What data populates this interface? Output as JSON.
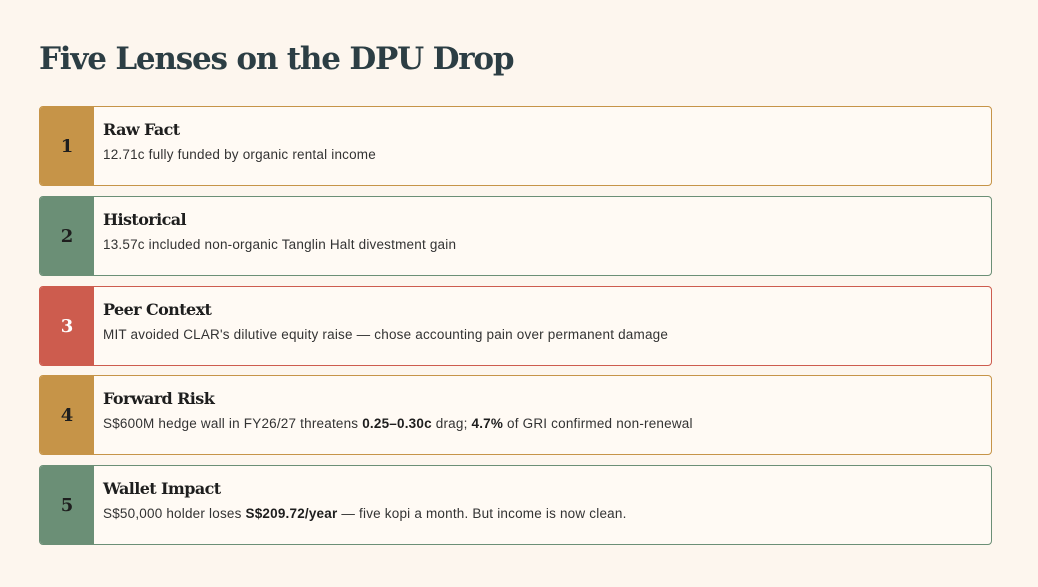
{
  "page": {
    "title": "Five Lenses on the DPU Drop"
  },
  "lenses": [
    {
      "number": "1",
      "heading": "Raw Fact",
      "description": "12.71c fully funded by organic rental income",
      "color": "#c69448"
    },
    {
      "number": "2",
      "heading": "Historical",
      "description": "13.57c included non-organic Tanglin Halt divestment gain",
      "color": "#6b8f76"
    },
    {
      "number": "3",
      "heading": "Peer Context",
      "description": "MIT avoided CLAR's dilutive equity raise — chose accounting pain over permanent damage",
      "color": "#cd5c4e"
    },
    {
      "number": "4",
      "heading": "Forward Risk",
      "color": "#c69448",
      "desc_a": "S$600M hedge wall in FY26/27 threatens ",
      "desc_b": "0.25–0.30c",
      "desc_c": " drag; ",
      "desc_d": "4.7%",
      "desc_e": " of GRI confirmed non-renewal"
    },
    {
      "number": "5",
      "heading": "Wallet Impact",
      "color": "#6b8f76",
      "desc_a": "S$50,000 holder loses ",
      "desc_b": "S$209.72/year",
      "desc_c": " — five kopi a month. But income is now clean."
    }
  ]
}
